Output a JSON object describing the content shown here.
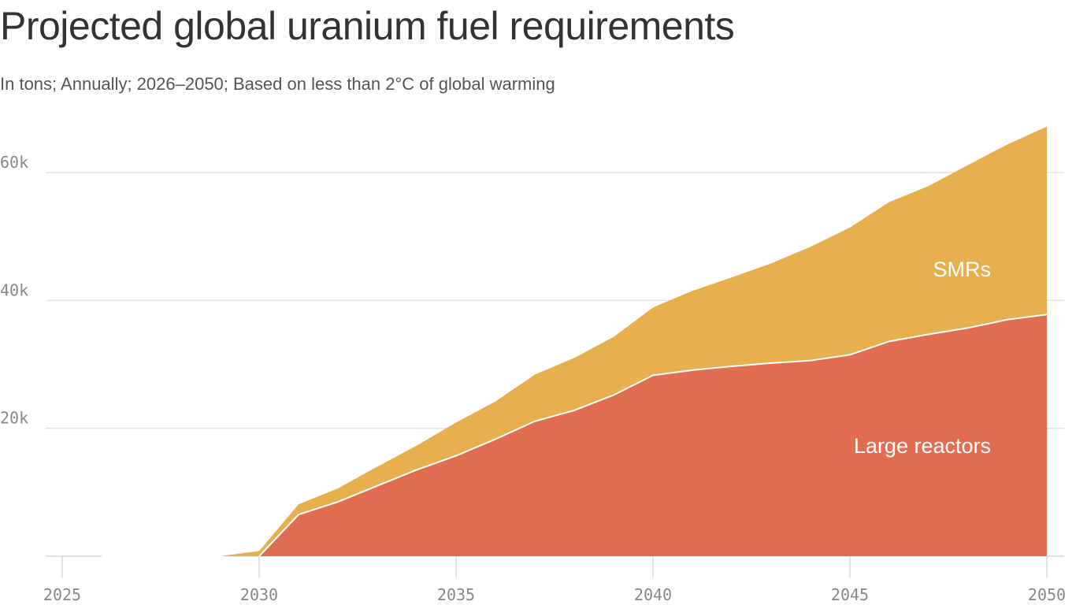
{
  "chart_data": {
    "type": "area",
    "stacked": true,
    "title": "Projected global uranium fuel requirements",
    "subtitle": "In tons; Annually; 2026–2050; Based on less than 2°C of global warming",
    "xlabel": "",
    "ylabel": "",
    "xlim": [
      2025,
      2050
    ],
    "ylim": [
      0,
      70000
    ],
    "x_ticks": [
      2025,
      2030,
      2035,
      2040,
      2045,
      2050
    ],
    "x_tick_labels": [
      "2025",
      "2030",
      "2035",
      "2040",
      "2045",
      "2050"
    ],
    "y_ticks": [
      20000,
      40000,
      60000
    ],
    "y_tick_labels": [
      "20k",
      "40k",
      "60k"
    ],
    "grid": true,
    "x": [
      2029,
      2030,
      2031,
      2032,
      2033,
      2034,
      2035,
      2036,
      2037,
      2038,
      2039,
      2040,
      2041,
      2042,
      2043,
      2044,
      2045,
      2046,
      2047,
      2048,
      2049,
      2050
    ],
    "series": [
      {
        "name": "Large reactors",
        "color": "#e06a50",
        "values": [
          0,
          0,
          6500,
          8500,
          11000,
          13500,
          15700,
          18300,
          21100,
          22800,
          25200,
          28300,
          29100,
          29700,
          30200,
          30600,
          31500,
          33600,
          34700,
          35700,
          37000,
          37800
        ]
      },
      {
        "name": "SMRs",
        "color": "#e6ab45",
        "values": [
          0,
          800,
          1600,
          2100,
          3000,
          3800,
          5200,
          5900,
          7300,
          8200,
          9100,
          10600,
          12400,
          13900,
          15600,
          17800,
          19900,
          21800,
          23200,
          25500,
          27400,
          29400
        ]
      }
    ]
  }
}
